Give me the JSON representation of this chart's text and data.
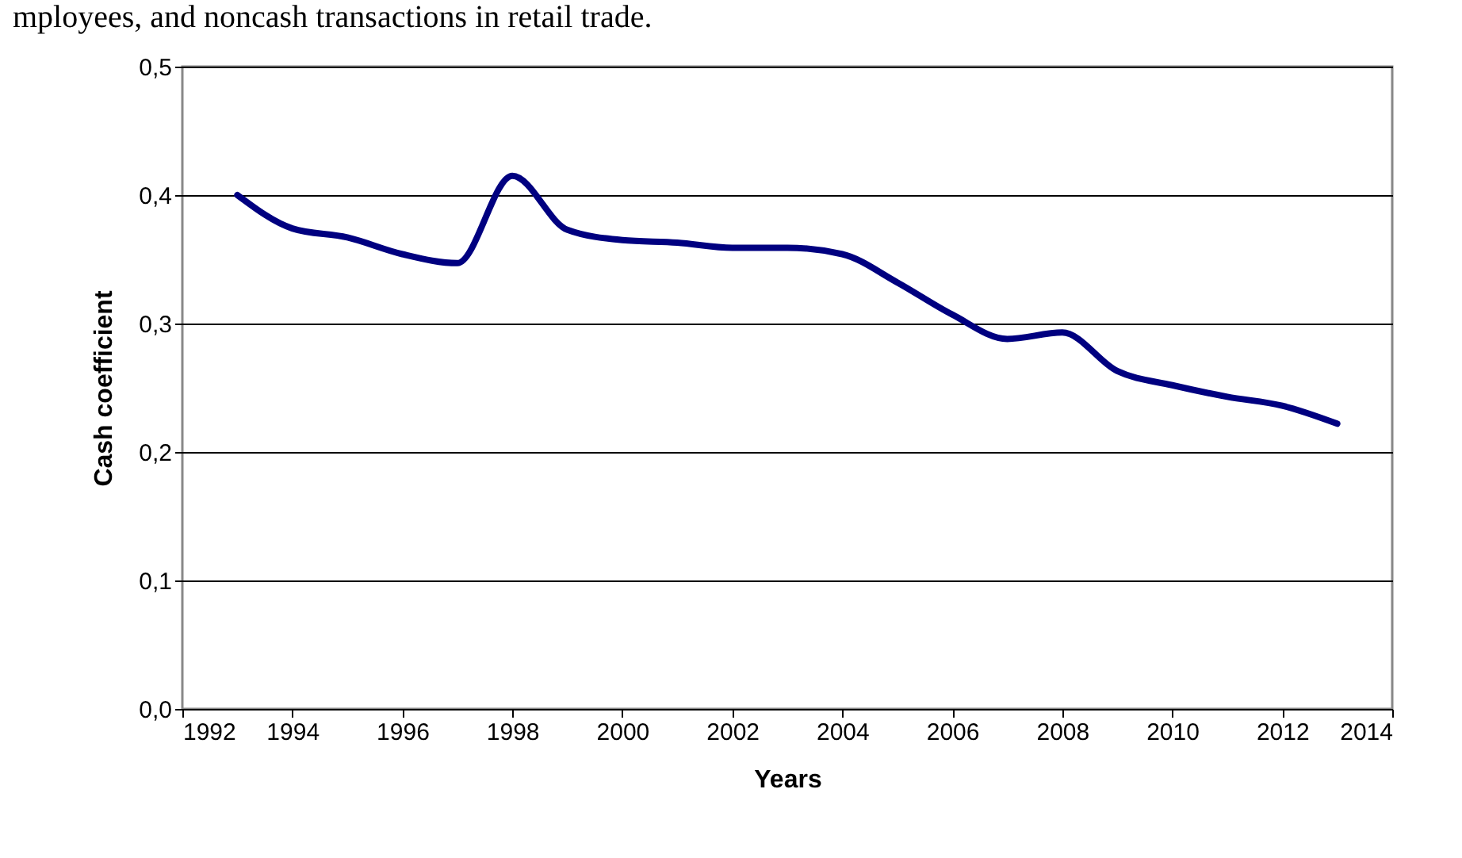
{
  "chart_data": {
    "type": "line",
    "xlabel": "Years",
    "ylabel": "Cash coefficient",
    "annotations": [
      "mployees, and noncash transactions in retail trade."
    ],
    "x": [
      1993,
      1994,
      1995,
      1996,
      1997,
      1998,
      1999,
      2000,
      2001,
      2002,
      2003,
      2004,
      2005,
      2006,
      2007,
      2008,
      2009,
      2010,
      2011,
      2012,
      2013
    ],
    "series": [
      {
        "color": "#000080",
        "values": [
          0.4,
          0.374,
          0.367,
          0.354,
          0.347,
          0.415,
          0.373,
          0.365,
          0.363,
          0.359,
          0.359,
          0.354,
          0.332,
          0.307,
          0.288,
          0.293,
          0.263,
          0.252,
          0.243,
          0.236,
          0.222
        ]
      }
    ],
    "xlim": [
      1992,
      2014
    ],
    "xticks": [
      1992,
      1994,
      1996,
      1998,
      2000,
      2002,
      2004,
      2006,
      2008,
      2010,
      2012,
      2014
    ],
    "ylim": [
      0,
      0.5
    ],
    "yticks": [
      {
        "value": 0,
        "label": "0,0"
      },
      {
        "value": 0.1,
        "label": "0,1"
      },
      {
        "value": 0.2,
        "label": "0,2"
      },
      {
        "value": 0.3,
        "label": "0,3"
      },
      {
        "value": 0.4,
        "label": "0,4"
      },
      {
        "value": 0.5,
        "label": "0,5"
      }
    ],
    "grid": "y",
    "legend": false,
    "marker": "none",
    "line_style": "solid"
  }
}
